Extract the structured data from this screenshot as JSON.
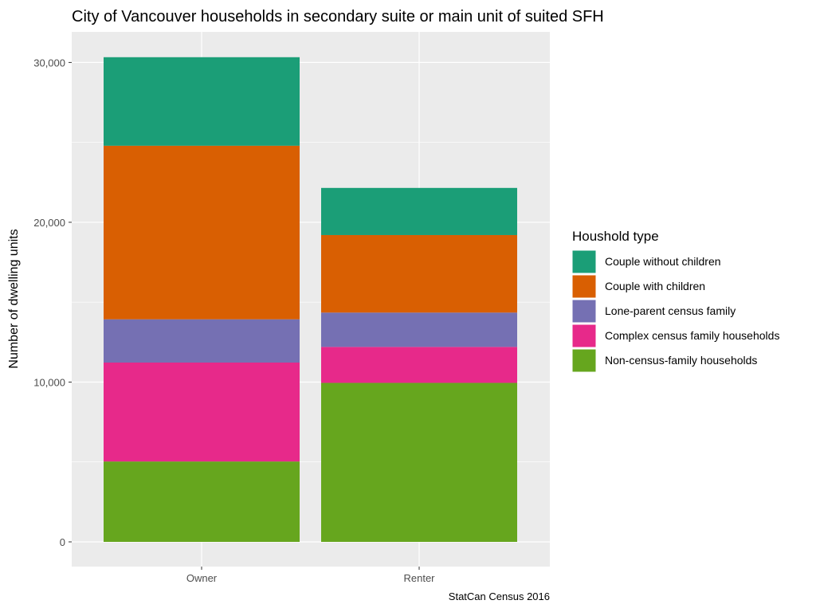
{
  "chart_data": {
    "type": "bar",
    "stacked": true,
    "title": "City of Vancouver households in secondary suite or main unit of suited SFH",
    "xlabel": "",
    "ylabel": "Number of dwelling units",
    "caption": "StatCan Census 2016",
    "categories": [
      "Owner",
      "Renter"
    ],
    "ylim": [
      -1500,
      31500
    ],
    "yticks": [
      0,
      10000,
      20000,
      30000
    ],
    "ytick_labels": [
      "0",
      "10,000",
      "20,000",
      "30,000"
    ],
    "grid": true,
    "legend": {
      "title": "Houshold type",
      "position": "right"
    },
    "series": [
      {
        "name": "Couple without children",
        "color": "#1B9E77",
        "values": [
          5540,
          2950
        ]
      },
      {
        "name": "Couple with children",
        "color": "#D95F02",
        "values": [
          10860,
          4850
        ]
      },
      {
        "name": "Lone-parent census family",
        "color": "#7570B3",
        "values": [
          2710,
          2150
        ]
      },
      {
        "name": "Complex census family households",
        "color": "#E7298A",
        "values": [
          6190,
          2250
        ]
      },
      {
        "name": "Non-census-family households",
        "color": "#66A61E",
        "values": [
          5030,
          9950
        ]
      }
    ]
  }
}
